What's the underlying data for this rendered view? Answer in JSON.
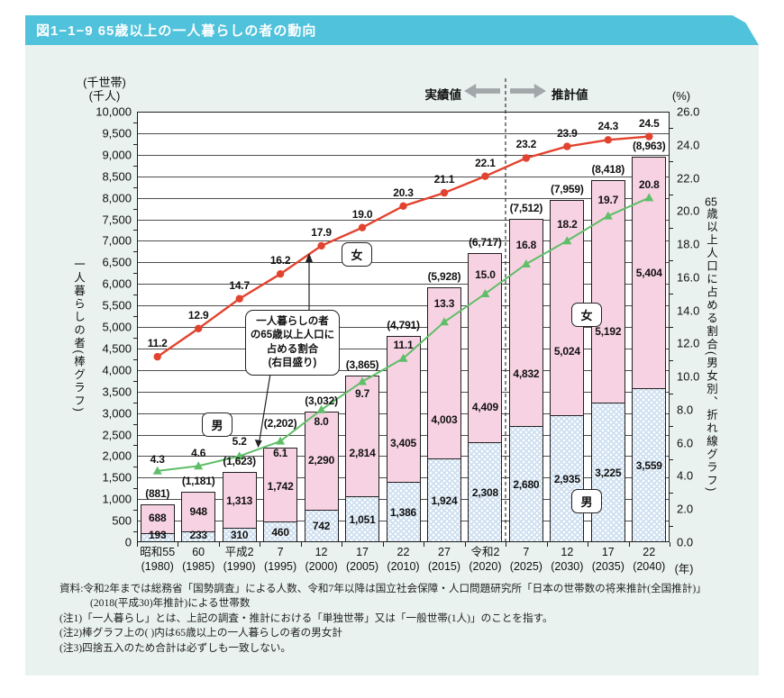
{
  "header": {
    "title": "図1−1−9 65歳以上の一人暮らしの者の動向"
  },
  "chart_data": {
    "type": "combo: stacked-bar + line",
    "categories_era": [
      "昭和55",
      "60",
      "平成2",
      "7",
      "12",
      "17",
      "22",
      "27",
      "令和2",
      "7",
      "12",
      "17",
      "22"
    ],
    "categories_year": [
      "(1980)",
      "(1985)",
      "(1990)",
      "(1995)",
      "(2000)",
      "(2005)",
      "(2010)",
      "(2015)",
      "(2020)",
      "(2025)",
      "(2030)",
      "(2035)",
      "(2040)"
    ],
    "bar_series": [
      {
        "name": "女",
        "color": "#f7d2e2",
        "values": [
          688,
          948,
          1313,
          1742,
          2290,
          2814,
          3405,
          4003,
          4409,
          4832,
          5024,
          5192,
          5404
        ]
      },
      {
        "name": "男",
        "color": "#cfe0f1",
        "values": [
          193,
          233,
          310,
          460,
          742,
          1051,
          1386,
          1924,
          2308,
          2680,
          2935,
          3225,
          3559
        ]
      }
    ],
    "bar_totals": [
      881,
      1181,
      1623,
      2202,
      3032,
      3865,
      4791,
      5928,
      6717,
      7512,
      7959,
      8418,
      8963
    ],
    "line_series": [
      {
        "name": "女",
        "color": "#e2432e",
        "marker": "circle",
        "values": [
          11.2,
          12.9,
          14.7,
          16.2,
          17.9,
          19.0,
          20.3,
          21.1,
          22.1,
          23.2,
          23.9,
          24.3,
          24.5
        ]
      },
      {
        "name": "男",
        "color": "#5fbe68",
        "marker": "triangle",
        "values": [
          4.3,
          4.6,
          5.2,
          6.1,
          8.0,
          9.7,
          11.1,
          13.3,
          15.0,
          16.8,
          18.2,
          19.7,
          20.8
        ]
      }
    ],
    "left_axis": {
      "unit_lines": [
        "(千世帯)",
        "(千人)"
      ],
      "min": 0,
      "max": 10000,
      "step": 500
    },
    "right_axis": {
      "unit": "(%)",
      "min": 0,
      "max": 26,
      "step": 2
    },
    "x_unit": "(年)",
    "left_axis_title": "一人暮らしの者(棒グラフ)",
    "right_axis_title": "65歳以上人口に占める割合(男女別、折れ線グラフ)",
    "actual_label": "実績値",
    "estimate_label": "推計値",
    "annotation_lines": [
      "一人暮らしの者",
      "の65歳以上人口に",
      "占める割合",
      "(右目盛り)"
    ],
    "female_label": "女",
    "male_label": "男",
    "grid": true,
    "legend_position": "in-chart boxed labels"
  },
  "notes": {
    "source_line1": "資料:令和2年までは総務省「国勢調査」による人数、令和7年以降は国立社会保障・人口問題研究所「日本の世帯数の将来推計(全国推計)」",
    "source_line2": "(2018(平成30)年推計)による世帯数",
    "note1": "(注1)「一人暮らし」とは、上記の調査・推計における「単独世帯」又は「一般世帯(1人)」のことを指す。",
    "note2": "(注2)棒グラフ上の( )内は65歳以上の一人暮らしの者の男女計",
    "note3": "(注3)四捨五入のため合計は必ずしも一致しない。"
  },
  "colors": {
    "header_bar": "#50c2db",
    "panel_bg": "#e9f2ef",
    "bar_female": "#f7d2e2",
    "bar_male": "#cfe0f1",
    "line_female": "#e2432e",
    "line_male": "#5fbe68",
    "arrow_gray": "#a2a7aa"
  }
}
